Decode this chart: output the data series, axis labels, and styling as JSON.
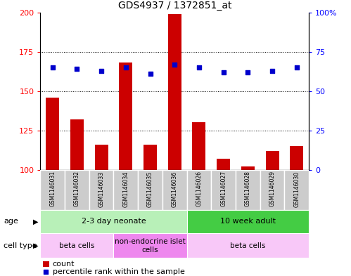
{
  "title": "GDS4937 / 1372851_at",
  "samples": [
    "GSM1146031",
    "GSM1146032",
    "GSM1146033",
    "GSM1146034",
    "GSM1146035",
    "GSM1146036",
    "GSM1146026",
    "GSM1146027",
    "GSM1146028",
    "GSM1146029",
    "GSM1146030"
  ],
  "counts": [
    146,
    132,
    116,
    168,
    116,
    199,
    130,
    107,
    102,
    112,
    115
  ],
  "percentiles": [
    65,
    64,
    63,
    65,
    61,
    67,
    65,
    62,
    62,
    63,
    65
  ],
  "ylim_left": [
    100,
    200
  ],
  "ylim_right": [
    0,
    100
  ],
  "yticks_left": [
    100,
    125,
    150,
    175,
    200
  ],
  "yticks_right": [
    0,
    25,
    50,
    75,
    100
  ],
  "bar_color": "#cc0000",
  "dot_color": "#0000cc",
  "age_groups": [
    {
      "label": "2-3 day neonate",
      "start": 0,
      "end": 6,
      "color": "#b8f0b8"
    },
    {
      "label": "10 week adult",
      "start": 6,
      "end": 11,
      "color": "#44cc44"
    }
  ],
  "cell_type_groups": [
    {
      "label": "beta cells",
      "start": 0,
      "end": 3,
      "color": "#f8c8f8"
    },
    {
      "label": "non-endocrine islet\ncells",
      "start": 3,
      "end": 6,
      "color": "#ee88ee"
    },
    {
      "label": "beta cells",
      "start": 6,
      "end": 11,
      "color": "#f8c8f8"
    }
  ],
  "legend_count_label": "count",
  "legend_percentile_label": "percentile rank within the sample",
  "bar_bottom": 100,
  "xticklabel_bg": "#cccccc"
}
